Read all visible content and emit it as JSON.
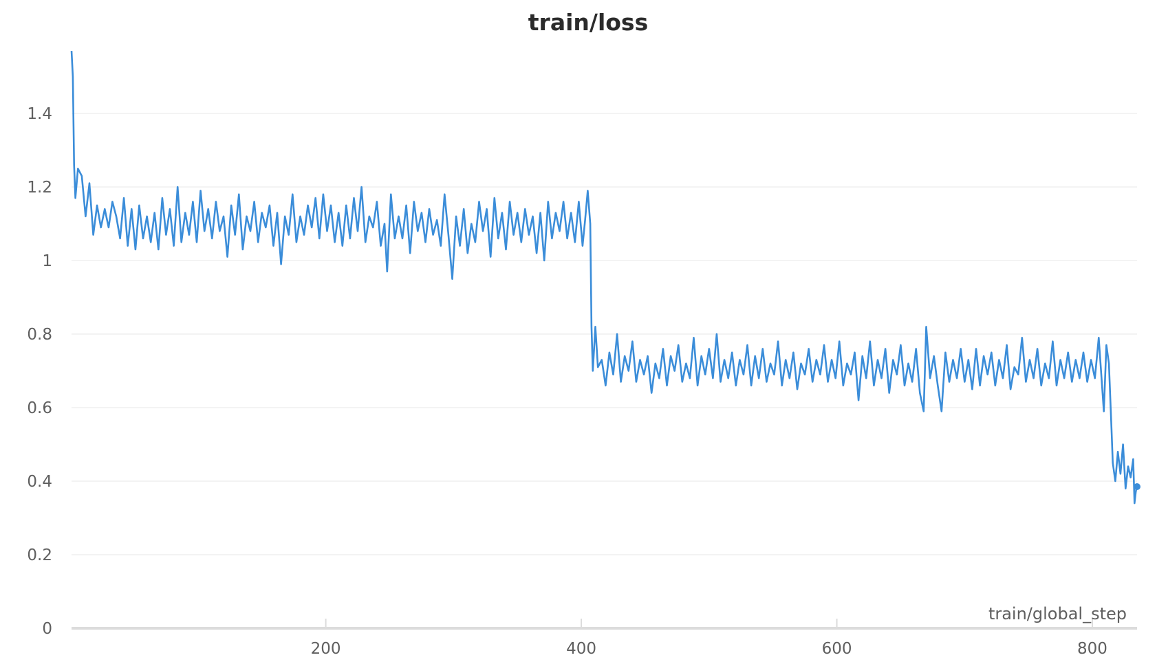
{
  "chart_data": {
    "type": "line",
    "title": "train/loss",
    "xlabel": "train/global_step",
    "ylabel": "",
    "xlim": [
      1,
      835
    ],
    "ylim": [
      0,
      1.6
    ],
    "x_ticks": [
      "200",
      "400",
      "600",
      "800"
    ],
    "y_ticks": [
      "0",
      "0.2",
      "0.4",
      "0.6",
      "0.8",
      "1",
      "1.2",
      "1.4"
    ],
    "grid": true,
    "legend": "none",
    "line_color": "#3b8dd9",
    "series": [
      {
        "name": "",
        "points": [
          [
            1,
            1.57
          ],
          [
            2,
            1.5
          ],
          [
            3,
            1.26
          ],
          [
            4,
            1.17
          ],
          [
            6,
            1.25
          ],
          [
            9,
            1.23
          ],
          [
            12,
            1.12
          ],
          [
            15,
            1.21
          ],
          [
            18,
            1.07
          ],
          [
            21,
            1.15
          ],
          [
            24,
            1.09
          ],
          [
            27,
            1.14
          ],
          [
            30,
            1.09
          ],
          [
            33,
            1.16
          ],
          [
            36,
            1.12
          ],
          [
            39,
            1.06
          ],
          [
            42,
            1.17
          ],
          [
            45,
            1.04
          ],
          [
            48,
            1.14
          ],
          [
            51,
            1.03
          ],
          [
            54,
            1.15
          ],
          [
            57,
            1.06
          ],
          [
            60,
            1.12
          ],
          [
            63,
            1.05
          ],
          [
            66,
            1.13
          ],
          [
            69,
            1.03
          ],
          [
            72,
            1.17
          ],
          [
            75,
            1.07
          ],
          [
            78,
            1.14
          ],
          [
            81,
            1.04
          ],
          [
            84,
            1.2
          ],
          [
            87,
            1.05
          ],
          [
            90,
            1.13
          ],
          [
            93,
            1.07
          ],
          [
            96,
            1.16
          ],
          [
            99,
            1.05
          ],
          [
            102,
            1.19
          ],
          [
            105,
            1.08
          ],
          [
            108,
            1.14
          ],
          [
            111,
            1.06
          ],
          [
            114,
            1.16
          ],
          [
            117,
            1.08
          ],
          [
            120,
            1.12
          ],
          [
            123,
            1.01
          ],
          [
            126,
            1.15
          ],
          [
            129,
            1.07
          ],
          [
            132,
            1.18
          ],
          [
            135,
            1.03
          ],
          [
            138,
            1.12
          ],
          [
            141,
            1.08
          ],
          [
            144,
            1.16
          ],
          [
            147,
            1.05
          ],
          [
            150,
            1.13
          ],
          [
            153,
            1.09
          ],
          [
            156,
            1.15
          ],
          [
            159,
            1.04
          ],
          [
            162,
            1.13
          ],
          [
            165,
            0.99
          ],
          [
            168,
            1.12
          ],
          [
            171,
            1.07
          ],
          [
            174,
            1.18
          ],
          [
            177,
            1.05
          ],
          [
            180,
            1.12
          ],
          [
            183,
            1.07
          ],
          [
            186,
            1.15
          ],
          [
            189,
            1.09
          ],
          [
            192,
            1.17
          ],
          [
            195,
            1.06
          ],
          [
            198,
            1.18
          ],
          [
            201,
            1.08
          ],
          [
            204,
            1.15
          ],
          [
            207,
            1.05
          ],
          [
            210,
            1.13
          ],
          [
            213,
            1.04
          ],
          [
            216,
            1.15
          ],
          [
            219,
            1.06
          ],
          [
            222,
            1.17
          ],
          [
            225,
            1.08
          ],
          [
            228,
            1.2
          ],
          [
            231,
            1.05
          ],
          [
            234,
            1.12
          ],
          [
            237,
            1.09
          ],
          [
            240,
            1.16
          ],
          [
            243,
            1.04
          ],
          [
            246,
            1.1
          ],
          [
            248,
            0.97
          ],
          [
            251,
            1.18
          ],
          [
            254,
            1.06
          ],
          [
            257,
            1.12
          ],
          [
            260,
            1.06
          ],
          [
            263,
            1.15
          ],
          [
            266,
            1.02
          ],
          [
            269,
            1.16
          ],
          [
            272,
            1.08
          ],
          [
            275,
            1.13
          ],
          [
            278,
            1.05
          ],
          [
            281,
            1.14
          ],
          [
            284,
            1.07
          ],
          [
            287,
            1.11
          ],
          [
            290,
            1.04
          ],
          [
            293,
            1.18
          ],
          [
            296,
            1.07
          ],
          [
            299,
            0.95
          ],
          [
            302,
            1.12
          ],
          [
            305,
            1.04
          ],
          [
            308,
            1.14
          ],
          [
            311,
            1.02
          ],
          [
            314,
            1.1
          ],
          [
            317,
            1.05
          ],
          [
            320,
            1.16
          ],
          [
            323,
            1.08
          ],
          [
            326,
            1.14
          ],
          [
            329,
            1.01
          ],
          [
            332,
            1.17
          ],
          [
            335,
            1.06
          ],
          [
            338,
            1.13
          ],
          [
            341,
            1.03
          ],
          [
            344,
            1.16
          ],
          [
            347,
            1.07
          ],
          [
            350,
            1.13
          ],
          [
            353,
            1.05
          ],
          [
            356,
            1.14
          ],
          [
            359,
            1.07
          ],
          [
            362,
            1.12
          ],
          [
            365,
            1.02
          ],
          [
            368,
            1.13
          ],
          [
            371,
            1.0
          ],
          [
            374,
            1.16
          ],
          [
            377,
            1.06
          ],
          [
            380,
            1.13
          ],
          [
            383,
            1.08
          ],
          [
            386,
            1.16
          ],
          [
            389,
            1.06
          ],
          [
            392,
            1.13
          ],
          [
            395,
            1.05
          ],
          [
            398,
            1.16
          ],
          [
            401,
            1.04
          ],
          [
            403,
            1.11
          ],
          [
            405,
            1.19
          ],
          [
            407,
            1.1
          ],
          [
            408,
            0.82
          ],
          [
            409,
            0.7
          ],
          [
            411,
            0.82
          ],
          [
            413,
            0.71
          ],
          [
            416,
            0.73
          ],
          [
            419,
            0.66
          ],
          [
            422,
            0.75
          ],
          [
            425,
            0.69
          ],
          [
            428,
            0.8
          ],
          [
            431,
            0.67
          ],
          [
            434,
            0.74
          ],
          [
            437,
            0.7
          ],
          [
            440,
            0.78
          ],
          [
            443,
            0.67
          ],
          [
            446,
            0.73
          ],
          [
            449,
            0.69
          ],
          [
            452,
            0.74
          ],
          [
            455,
            0.64
          ],
          [
            458,
            0.72
          ],
          [
            461,
            0.68
          ],
          [
            464,
            0.76
          ],
          [
            467,
            0.66
          ],
          [
            470,
            0.74
          ],
          [
            473,
            0.7
          ],
          [
            476,
            0.77
          ],
          [
            479,
            0.67
          ],
          [
            482,
            0.72
          ],
          [
            485,
            0.68
          ],
          [
            488,
            0.79
          ],
          [
            491,
            0.66
          ],
          [
            494,
            0.74
          ],
          [
            497,
            0.69
          ],
          [
            500,
            0.76
          ],
          [
            503,
            0.68
          ],
          [
            506,
            0.8
          ],
          [
            509,
            0.67
          ],
          [
            512,
            0.73
          ],
          [
            515,
            0.68
          ],
          [
            518,
            0.75
          ],
          [
            521,
            0.66
          ],
          [
            524,
            0.73
          ],
          [
            527,
            0.69
          ],
          [
            530,
            0.77
          ],
          [
            533,
            0.66
          ],
          [
            536,
            0.74
          ],
          [
            539,
            0.68
          ],
          [
            542,
            0.76
          ],
          [
            545,
            0.67
          ],
          [
            548,
            0.72
          ],
          [
            551,
            0.69
          ],
          [
            554,
            0.78
          ],
          [
            557,
            0.66
          ],
          [
            560,
            0.73
          ],
          [
            563,
            0.68
          ],
          [
            566,
            0.75
          ],
          [
            569,
            0.65
          ],
          [
            572,
            0.72
          ],
          [
            575,
            0.69
          ],
          [
            578,
            0.76
          ],
          [
            581,
            0.67
          ],
          [
            584,
            0.73
          ],
          [
            587,
            0.69
          ],
          [
            590,
            0.77
          ],
          [
            593,
            0.67
          ],
          [
            596,
            0.73
          ],
          [
            599,
            0.68
          ],
          [
            602,
            0.78
          ],
          [
            605,
            0.66
          ],
          [
            608,
            0.72
          ],
          [
            611,
            0.69
          ],
          [
            614,
            0.75
          ],
          [
            617,
            0.62
          ],
          [
            620,
            0.74
          ],
          [
            623,
            0.68
          ],
          [
            626,
            0.78
          ],
          [
            629,
            0.66
          ],
          [
            632,
            0.73
          ],
          [
            635,
            0.68
          ],
          [
            638,
            0.76
          ],
          [
            641,
            0.64
          ],
          [
            644,
            0.73
          ],
          [
            647,
            0.69
          ],
          [
            650,
            0.77
          ],
          [
            653,
            0.66
          ],
          [
            656,
            0.72
          ],
          [
            659,
            0.67
          ],
          [
            662,
            0.76
          ],
          [
            665,
            0.64
          ],
          [
            668,
            0.59
          ],
          [
            670,
            0.82
          ],
          [
            673,
            0.68
          ],
          [
            676,
            0.74
          ],
          [
            679,
            0.66
          ],
          [
            682,
            0.59
          ],
          [
            685,
            0.75
          ],
          [
            688,
            0.67
          ],
          [
            691,
            0.73
          ],
          [
            694,
            0.68
          ],
          [
            697,
            0.76
          ],
          [
            700,
            0.67
          ],
          [
            703,
            0.73
          ],
          [
            706,
            0.65
          ],
          [
            709,
            0.76
          ],
          [
            712,
            0.66
          ],
          [
            715,
            0.74
          ],
          [
            718,
            0.69
          ],
          [
            721,
            0.75
          ],
          [
            724,
            0.66
          ],
          [
            727,
            0.73
          ],
          [
            730,
            0.68
          ],
          [
            733,
            0.77
          ],
          [
            736,
            0.65
          ],
          [
            739,
            0.71
          ],
          [
            742,
            0.69
          ],
          [
            745,
            0.79
          ],
          [
            748,
            0.67
          ],
          [
            751,
            0.73
          ],
          [
            754,
            0.68
          ],
          [
            757,
            0.76
          ],
          [
            760,
            0.66
          ],
          [
            763,
            0.72
          ],
          [
            766,
            0.68
          ],
          [
            769,
            0.78
          ],
          [
            772,
            0.66
          ],
          [
            775,
            0.73
          ],
          [
            778,
            0.68
          ],
          [
            781,
            0.75
          ],
          [
            784,
            0.67
          ],
          [
            787,
            0.73
          ],
          [
            790,
            0.68
          ],
          [
            793,
            0.75
          ],
          [
            796,
            0.67
          ],
          [
            799,
            0.73
          ],
          [
            802,
            0.68
          ],
          [
            805,
            0.79
          ],
          [
            807,
            0.69
          ],
          [
            809,
            0.59
          ],
          [
            811,
            0.77
          ],
          [
            813,
            0.72
          ],
          [
            815,
            0.54
          ],
          [
            816,
            0.45
          ],
          [
            818,
            0.4
          ],
          [
            820,
            0.48
          ],
          [
            822,
            0.42
          ],
          [
            824,
            0.5
          ],
          [
            826,
            0.38
          ],
          [
            828,
            0.44
          ],
          [
            830,
            0.41
          ],
          [
            832,
            0.46
          ],
          [
            833,
            0.34
          ],
          [
            834,
            0.37
          ],
          [
            835,
            0.39
          ]
        ]
      }
    ],
    "end_marker": [
      835,
      0.385
    ]
  }
}
